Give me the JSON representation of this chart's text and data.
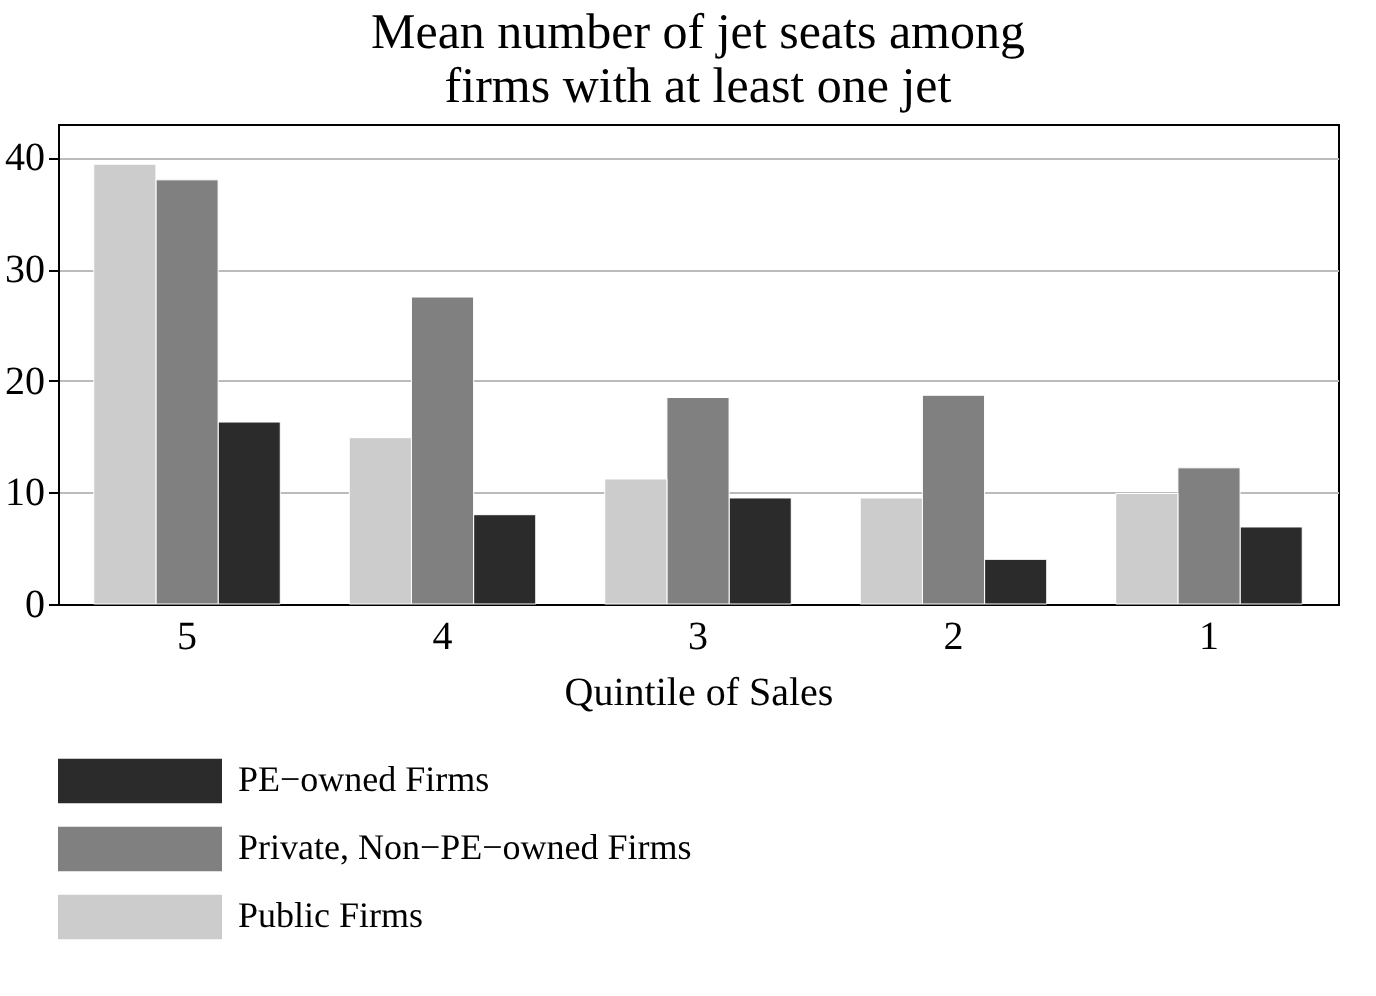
{
  "chart_data": {
    "type": "bar",
    "title": "Mean number of jet seats among firms with at least one jet",
    "xlabel": "Quintile of Sales",
    "categories": [
      "5",
      "4",
      "3",
      "2",
      "1"
    ],
    "series": [
      {
        "name": "PE−owned Firms",
        "color": "#2b2b2b",
        "values": [
          16.3,
          8.0,
          9.5,
          4.0,
          6.9
        ]
      },
      {
        "name": "Private, Non−PE−owned Firms",
        "color": "#808080",
        "values": [
          38.0,
          27.5,
          18.5,
          18.7,
          12.2
        ]
      },
      {
        "name": "Public Firms",
        "color": "#cccccc",
        "values": [
          39.4,
          14.9,
          11.2,
          9.5,
          9.9
        ]
      }
    ],
    "ylim": [
      0,
      43
    ],
    "yticks": [
      0,
      10,
      20,
      30,
      40
    ],
    "grid": "y",
    "legend": "bottom"
  }
}
